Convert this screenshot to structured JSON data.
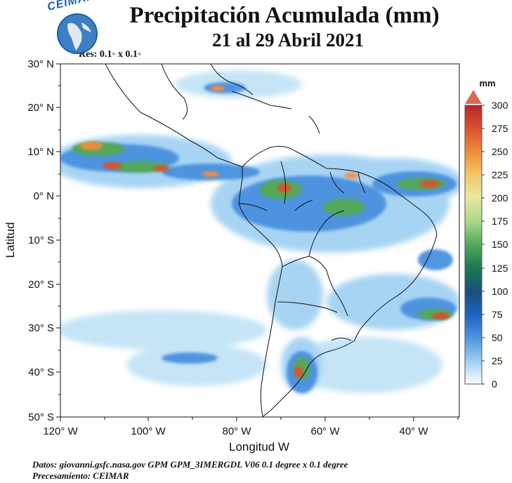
{
  "header": {
    "title": "Precipitación Acumulada (mm)",
    "subtitle": "21 al 29 Abril 2021",
    "resolution": "Res: 0.1◦ x 0.1◦",
    "logo_text": "CEIMAR"
  },
  "map": {
    "region": "South America and eastern Pacific",
    "lat_ticks": [
      "30° N",
      "20° N",
      "10° N",
      "0° N",
      "10° S",
      "20° S",
      "30° S",
      "40° S",
      "50° S"
    ],
    "lon_ticks": [
      "120° W",
      "100° W",
      "80° W",
      "60° W",
      "40° W"
    ],
    "xlabel": "Longitud W",
    "ylabel": "Latitud"
  },
  "colorbar": {
    "unit": "mm",
    "ticks": [
      "300",
      "275",
      "250",
      "225",
      "200",
      "175",
      "150",
      "125",
      "100",
      "75",
      "50",
      "25",
      "0"
    ],
    "colors": [
      "#b4262a",
      "#d9502f",
      "#ee8e3c",
      "#f3c76a",
      "#e9e9a0",
      "#a8d68a",
      "#52a85a",
      "#1f7a4e",
      "#17507a",
      "#1f62c0",
      "#4a90e0",
      "#9fd0f2",
      "#ffffff"
    ],
    "over_color": "#d96a55"
  },
  "footer": {
    "source": "Datos: giovanni.gsfc.nasa.gov  GPM GPM_3IMERGDL V06  0.1 degree x 0.1 degree",
    "processing": "Precesamiento: CEIMAR"
  }
}
